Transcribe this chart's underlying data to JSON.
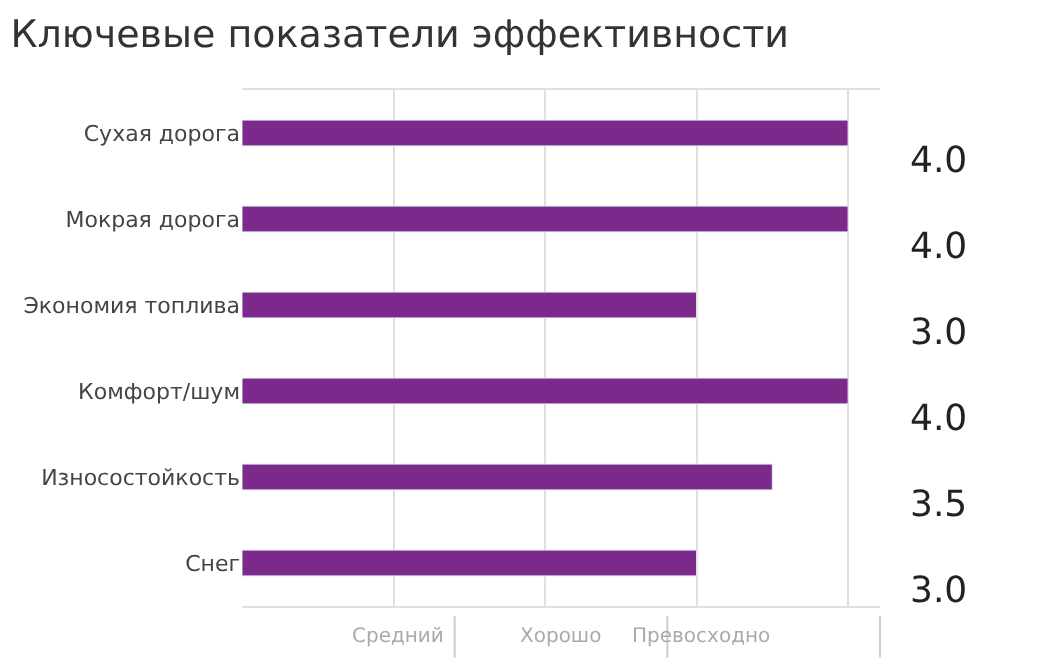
{
  "chart_data": {
    "type": "bar",
    "orientation": "horizontal",
    "title": "Ключевые показатели эффективности",
    "categories": [
      "Сухая дорога",
      "Мокрая дорога",
      "Экономия топлива",
      "Комфорт/шум",
      "Износостойкость",
      "Снег"
    ],
    "values": [
      4.0,
      4.0,
      3.0,
      4.0,
      3.5,
      3.0
    ],
    "value_labels": [
      "4.0",
      "4.0",
      "3.0",
      "4.0",
      "3.5",
      "3.0"
    ],
    "color": "#7b2a8c",
    "tick_labels": "y",
    "annotations": [
      "Средний",
      "Хорошо",
      "Превосходно"
    ],
    "grid": "x",
    "legend": false
  }
}
